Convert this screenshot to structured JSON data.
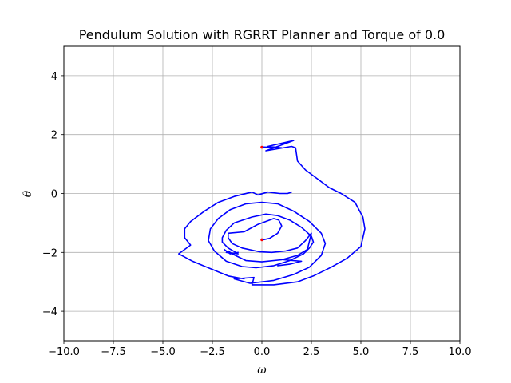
{
  "chart_data": {
    "type": "line",
    "title": "Pendulum Solution with RGRRT Planner and Torque of 0.0",
    "xlabel": "ω",
    "ylabel": "θ",
    "xlim": [
      -10,
      10
    ],
    "ylim": [
      -5,
      5
    ],
    "xticks": [
      -10,
      -7.5,
      -5,
      -2.5,
      0,
      2.5,
      5,
      7.5,
      10
    ],
    "xtick_labels": [
      "−10.0",
      "−7.5",
      "−5.0",
      "−2.5",
      "0.0",
      "2.5",
      "5.0",
      "7.5",
      "10.0"
    ],
    "yticks": [
      -4,
      -2,
      0,
      2,
      4
    ],
    "ytick_labels": [
      "−4",
      "−2",
      "0",
      "2",
      "4"
    ],
    "grid": true,
    "series": [
      {
        "color": "#0000ff",
        "points": [
          [
            0.0,
            -1.58
          ],
          [
            0.4,
            -1.52
          ],
          [
            0.8,
            -1.35
          ],
          [
            1.0,
            -1.1
          ],
          [
            0.85,
            -0.9
          ],
          [
            0.6,
            -0.85
          ],
          [
            -0.2,
            -1.05
          ],
          [
            -0.9,
            -1.3
          ],
          [
            -1.7,
            -1.35
          ],
          [
            -1.7,
            -1.5
          ],
          [
            -1.5,
            -1.7
          ],
          [
            -1.0,
            -1.85
          ],
          [
            -0.1,
            -1.98
          ],
          [
            0.5,
            -2.0
          ],
          [
            1.2,
            -1.95
          ],
          [
            1.8,
            -1.85
          ],
          [
            2.2,
            -1.6
          ],
          [
            2.5,
            -1.35
          ],
          [
            2.3,
            -1.9
          ],
          [
            1.8,
            -2.1
          ],
          [
            1.0,
            -2.25
          ],
          [
            0.0,
            -2.32
          ],
          [
            -0.8,
            -2.28
          ],
          [
            -1.5,
            -2.05
          ],
          [
            -1.7,
            -1.95
          ],
          [
            -1.8,
            -2.0
          ],
          [
            -1.2,
            -2.05
          ],
          [
            -1.7,
            -1.85
          ],
          [
            -2.0,
            -1.65
          ],
          [
            -2.0,
            -1.5
          ],
          [
            -1.8,
            -1.25
          ],
          [
            -1.4,
            -1.0
          ],
          [
            -0.5,
            -0.8
          ],
          [
            0.2,
            -0.7
          ],
          [
            0.8,
            -0.75
          ],
          [
            1.4,
            -0.9
          ],
          [
            2.0,
            -1.15
          ],
          [
            2.5,
            -1.45
          ],
          [
            2.6,
            -1.65
          ],
          [
            2.4,
            -1.85
          ],
          [
            2.1,
            -2.05
          ],
          [
            1.4,
            -2.28
          ],
          [
            0.6,
            -2.45
          ],
          [
            -0.3,
            -2.52
          ],
          [
            -1.0,
            -2.48
          ],
          [
            -1.8,
            -2.3
          ],
          [
            -2.4,
            -1.95
          ],
          [
            -2.7,
            -1.6
          ],
          [
            -2.6,
            -1.2
          ],
          [
            -2.2,
            -0.85
          ],
          [
            -1.6,
            -0.55
          ],
          [
            -0.8,
            -0.35
          ],
          [
            0.0,
            -0.3
          ],
          [
            0.8,
            -0.35
          ],
          [
            1.6,
            -0.6
          ],
          [
            2.4,
            -0.95
          ],
          [
            3.0,
            -1.35
          ],
          [
            3.2,
            -1.7
          ],
          [
            3.0,
            -2.1
          ],
          [
            2.4,
            -2.5
          ],
          [
            1.6,
            -2.75
          ],
          [
            0.6,
            -2.95
          ],
          [
            -0.6,
            -3.05
          ],
          [
            -1.4,
            -2.9
          ],
          [
            -0.4,
            -2.85
          ],
          [
            -0.5,
            -3.1
          ],
          [
            0.6,
            -3.1
          ],
          [
            1.8,
            -3.0
          ],
          [
            2.6,
            -2.8
          ],
          [
            3.5,
            -2.5
          ],
          [
            4.3,
            -2.2
          ],
          [
            5.0,
            -1.8
          ],
          [
            5.2,
            -1.2
          ],
          [
            5.1,
            -0.8
          ],
          [
            4.7,
            -0.3
          ],
          [
            4.0,
            0.0
          ],
          [
            3.4,
            0.2
          ],
          [
            2.8,
            0.5
          ],
          [
            2.2,
            0.8
          ],
          [
            1.8,
            1.1
          ],
          [
            1.7,
            1.55
          ],
          [
            1.5,
            1.6
          ],
          [
            0.2,
            1.45
          ],
          [
            1.6,
            1.8
          ],
          [
            0.3,
            1.6
          ],
          [
            1.0,
            1.55
          ],
          [
            0.0,
            1.58
          ]
        ]
      },
      {
        "color": "#0000ff",
        "points": [
          [
            1.1,
            -2.25
          ],
          [
            2.0,
            -2.3
          ],
          [
            1.4,
            -2.4
          ],
          [
            0.8,
            -2.45
          ]
        ]
      },
      {
        "color": "#0000ff",
        "points": [
          [
            -0.2,
            -0.05
          ],
          [
            0.3,
            0.05
          ],
          [
            0.9,
            0.0
          ],
          [
            1.3,
            0.0
          ],
          [
            1.5,
            0.05
          ]
        ]
      },
      {
        "color": "#0000ff",
        "points": [
          [
            -3.6,
            -0.95
          ],
          [
            -2.9,
            -0.6
          ],
          [
            -2.2,
            -0.3
          ],
          [
            -1.4,
            -0.1
          ],
          [
            -0.5,
            0.05
          ],
          [
            -0.2,
            -0.05
          ]
        ]
      },
      {
        "color": "#0000ff",
        "points": [
          [
            -3.6,
            -0.95
          ],
          [
            -3.9,
            -1.2
          ],
          [
            -3.9,
            -1.5
          ],
          [
            -3.6,
            -1.75
          ],
          [
            -4.2,
            -2.05
          ],
          [
            -3.5,
            -2.3
          ],
          [
            -2.6,
            -2.55
          ],
          [
            -1.7,
            -2.8
          ],
          [
            -0.9,
            -2.9
          ]
        ]
      },
      {
        "color": "#0000ff",
        "points": [
          [
            -1.9,
            -1.9
          ],
          [
            -1.6,
            -2.05
          ],
          [
            -1.2,
            -2.0
          ]
        ]
      }
    ],
    "markers": [
      {
        "x": 0.0,
        "y": 1.57,
        "color": "#ff0000"
      },
      {
        "x": 0.0,
        "y": -1.57,
        "color": "#ff0000"
      }
    ]
  }
}
